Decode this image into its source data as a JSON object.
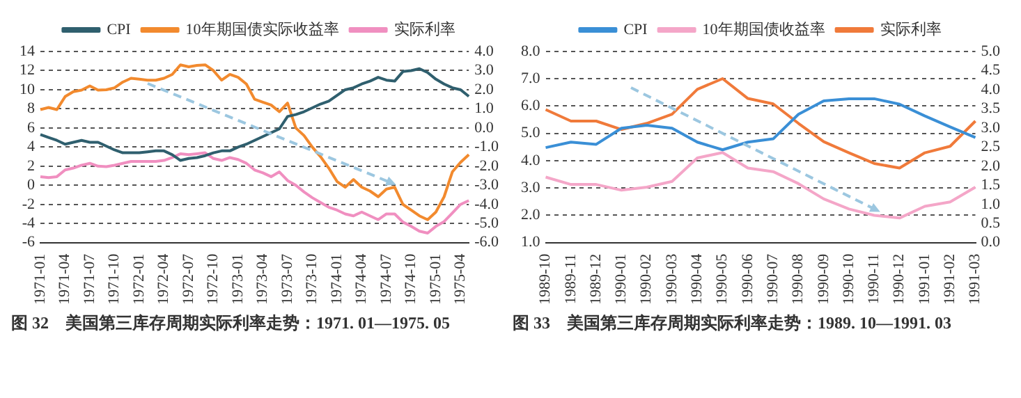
{
  "chart_data": [
    {
      "type": "line",
      "categories": [
        "1971-01",
        null,
        null,
        "1971-04",
        null,
        null,
        "1971-07",
        null,
        null,
        "1971-10",
        null,
        null,
        "1972-01",
        null,
        null,
        "1972-04",
        null,
        null,
        "1972-07",
        null,
        null,
        "1972-10",
        null,
        null,
        "1973-01",
        null,
        null,
        "1973-04",
        null,
        null,
        "1973-07",
        null,
        null,
        "1973-10",
        null,
        null,
        "1974-01",
        null,
        null,
        "1974-04",
        null,
        null,
        "1974-07",
        null,
        null,
        "1974-10",
        null,
        null,
        "1975-01",
        null,
        null,
        "1975-04",
        null
      ],
      "series": [
        {
          "name": "CPI",
          "color": "#2f5f6e",
          "axis": "y",
          "values": [
            5.3,
            5.0,
            4.7,
            4.3,
            4.5,
            4.7,
            4.5,
            4.5,
            4.1,
            3.7,
            3.4,
            3.4,
            3.4,
            3.5,
            3.6,
            3.6,
            3.2,
            2.6,
            2.8,
            2.9,
            3.1,
            3.4,
            3.6,
            3.6,
            4.0,
            4.3,
            4.7,
            5.1,
            5.5,
            5.9,
            7.2,
            7.4,
            7.7,
            8.1,
            8.5,
            8.8,
            9.4,
            10.0,
            10.2,
            10.6,
            10.9,
            11.3,
            11.0,
            10.9,
            11.9,
            12.0,
            12.2,
            11.8,
            11.1,
            10.6,
            10.2,
            10.0,
            9.3
          ]
        },
        {
          "name": "10年期国债实际收益率",
          "color": "#f28a2e",
          "axis": "y2",
          "values": [
            0.96,
            1.07,
            0.96,
            1.64,
            1.9,
            1.98,
            2.2,
            1.98,
            2.0,
            2.1,
            2.4,
            2.6,
            2.55,
            2.5,
            2.5,
            2.6,
            2.8,
            3.3,
            3.2,
            3.27,
            3.3,
            3.0,
            2.5,
            2.8,
            2.65,
            2.3,
            1.5,
            1.35,
            1.2,
            0.85,
            1.3,
            0.0,
            -0.4,
            -1.0,
            -1.5,
            -2.1,
            -2.8,
            -3.1,
            -2.7,
            -3.1,
            -3.3,
            -3.6,
            -3.2,
            -3.1,
            -4.0,
            -4.3,
            -4.6,
            -4.8,
            -4.4,
            -3.6,
            -2.3,
            -1.8,
            -1.4
          ]
        },
        {
          "name": "实际利率",
          "color": "#f08fc0",
          "axis": "y",
          "values": [
            0.9,
            0.8,
            0.9,
            1.6,
            1.8,
            2.1,
            2.3,
            2.0,
            1.95,
            2.1,
            2.3,
            2.5,
            2.5,
            2.5,
            2.5,
            2.6,
            2.9,
            3.3,
            3.2,
            3.3,
            3.4,
            2.8,
            2.6,
            2.9,
            2.7,
            2.3,
            1.6,
            1.3,
            0.9,
            1.4,
            0.5,
            0.0,
            -0.7,
            -1.3,
            -1.8,
            -2.3,
            -2.6,
            -3.0,
            -3.2,
            -2.8,
            -3.2,
            -3.6,
            -3.0,
            -3.0,
            -3.85,
            -4.3,
            -4.8,
            -5.0,
            -4.3,
            -3.8,
            -2.9,
            -2.0,
            -1.6
          ]
        }
      ],
      "ylim": [
        -6,
        14
      ],
      "yticks": [
        -6,
        -4,
        -2,
        0,
        2,
        4,
        6,
        8,
        10,
        12,
        14
      ],
      "y2lim": [
        -6,
        4
      ],
      "y2ticks": [
        {
          "value": -6,
          "label": "-6.0"
        },
        {
          "value": -5,
          "label": "-5.0"
        },
        {
          "value": -4,
          "label": "-4.0"
        },
        {
          "value": -3,
          "label": "-3.0"
        },
        {
          "value": -2,
          "label": "-2.0"
        },
        {
          "value": -1,
          "label": "-1.0"
        },
        {
          "value": 0,
          "label": "0.0"
        },
        {
          "value": 1,
          "label": "1.0"
        },
        {
          "value": 2,
          "label": "2.0"
        },
        {
          "value": 3,
          "label": "3.0"
        },
        {
          "value": 4,
          "label": "4.0"
        }
      ],
      "grid": "y",
      "legend": "top",
      "marker": "none",
      "line_style": "solid",
      "annotations": [
        "图 32　美国第三库存周期实际利率走势：1971. 01—1975. 05"
      ]
    },
    {
      "type": "line",
      "categories": [
        "1989-10",
        "1989-11",
        "1989-12",
        "1990-01",
        "1990-02",
        "1990-03",
        "1990-04",
        "1990-05",
        "1990-06",
        "1990-07",
        "1990-08",
        "1990-09",
        "1990-10",
        "1990-11",
        "1990-12",
        "1991-01",
        "1991-02",
        "1991-03"
      ],
      "series": [
        {
          "name": "CPI",
          "color": "#3a8fd6",
          "axis": "y",
          "values": [
            4.48,
            4.68,
            4.6,
            5.19,
            5.3,
            5.19,
            4.68,
            4.4,
            4.68,
            4.8,
            5.7,
            6.19,
            6.27,
            6.27,
            6.07,
            5.64,
            5.24,
            4.85
          ]
        },
        {
          "name": "10年期国债收益率",
          "color": "#f4a6c8",
          "axis": "y",
          "values": [
            3.4,
            3.13,
            3.13,
            2.92,
            3.03,
            3.24,
            4.1,
            4.3,
            3.73,
            3.6,
            3.16,
            2.6,
            2.23,
            2.0,
            1.9,
            2.33,
            2.49,
            3.03
          ]
        },
        {
          "name": "实际利率",
          "color": "#f07a3a",
          "axis": "y2",
          "values": [
            3.48,
            3.18,
            3.18,
            2.96,
            3.12,
            3.36,
            4.01,
            4.29,
            3.77,
            3.63,
            3.12,
            2.64,
            2.35,
            2.07,
            1.95,
            2.35,
            2.52,
            3.18
          ]
        }
      ],
      "ylim": [
        1,
        8
      ],
      "yticks": [
        {
          "value": 1,
          "label": "1.0"
        },
        {
          "value": 2,
          "label": "2.0"
        },
        {
          "value": 3,
          "label": "3.0"
        },
        {
          "value": 4,
          "label": "4.0"
        },
        {
          "value": 5,
          "label": "5.0"
        },
        {
          "value": 6,
          "label": "6.0"
        },
        {
          "value": 7,
          "label": "7.0"
        },
        {
          "value": 8,
          "label": "8.0"
        }
      ],
      "y2lim": [
        0,
        5
      ],
      "y2ticks": [
        {
          "value": 0,
          "label": "0.0"
        },
        {
          "value": 0.5,
          "label": "0.5"
        },
        {
          "value": 1,
          "label": "1.0"
        },
        {
          "value": 1.5,
          "label": "1.5"
        },
        {
          "value": 2,
          "label": "2.0"
        },
        {
          "value": 2.5,
          "label": "2.5"
        },
        {
          "value": 3,
          "label": "3.0"
        },
        {
          "value": 3.5,
          "label": "3.5"
        },
        {
          "value": 4,
          "label": "4.0"
        },
        {
          "value": 4.5,
          "label": "4.5"
        },
        {
          "value": 5,
          "label": "5.0"
        }
      ],
      "grid": "y",
      "legend": "top",
      "marker": "none",
      "line_style": "solid",
      "annotations": [
        "图 33　美国第三库存周期实际利率走势：1989. 10—1991. 03"
      ]
    }
  ]
}
